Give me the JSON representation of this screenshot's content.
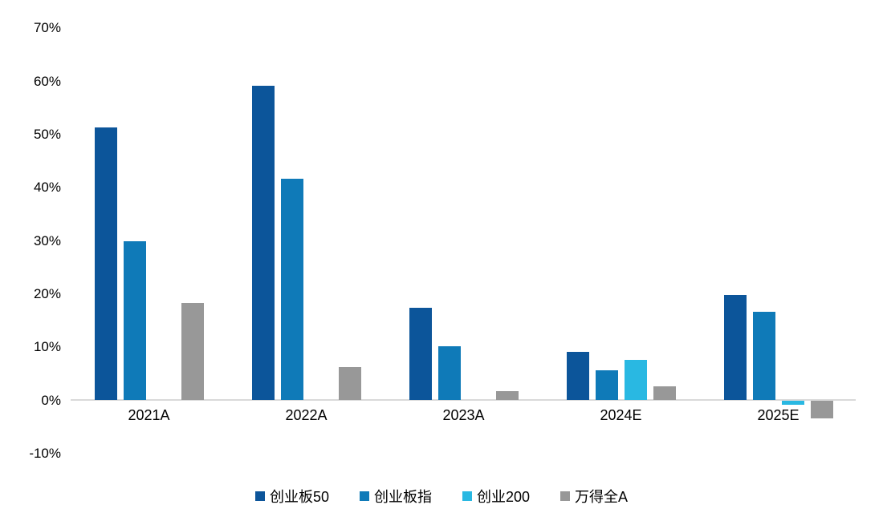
{
  "chart_data": {
    "type": "bar",
    "title": "",
    "xlabel": "",
    "ylabel": "",
    "categories": [
      "2021A",
      "2022A",
      "2023A",
      "2024E",
      "2025E"
    ],
    "series": [
      {
        "name": "创业板50",
        "color": "#0c559a",
        "values": [
          51.3,
          59.1,
          17.4,
          9.0,
          19.8
        ]
      },
      {
        "name": "创业板指",
        "color": "#0f7ab8",
        "values": [
          29.8,
          41.6,
          10.1,
          5.6,
          16.6
        ]
      },
      {
        "name": "创业200",
        "color": "#29b8e2",
        "values": [
          null,
          null,
          null,
          7.6,
          -0.8
        ]
      },
      {
        "name": "万得全A",
        "color": "#989898",
        "values": [
          18.3,
          6.2,
          1.6,
          2.6,
          -3.3
        ]
      }
    ],
    "ylim": [
      -10,
      70
    ],
    "yticks": [
      70,
      60,
      50,
      40,
      30,
      20,
      10,
      0,
      -10
    ],
    "ytick_suffix": "%",
    "grid": false,
    "legend_position": "bottom"
  },
  "colors": {
    "background": "#ffffff",
    "axis_line": "#d9d9d9",
    "text": "#000000"
  }
}
